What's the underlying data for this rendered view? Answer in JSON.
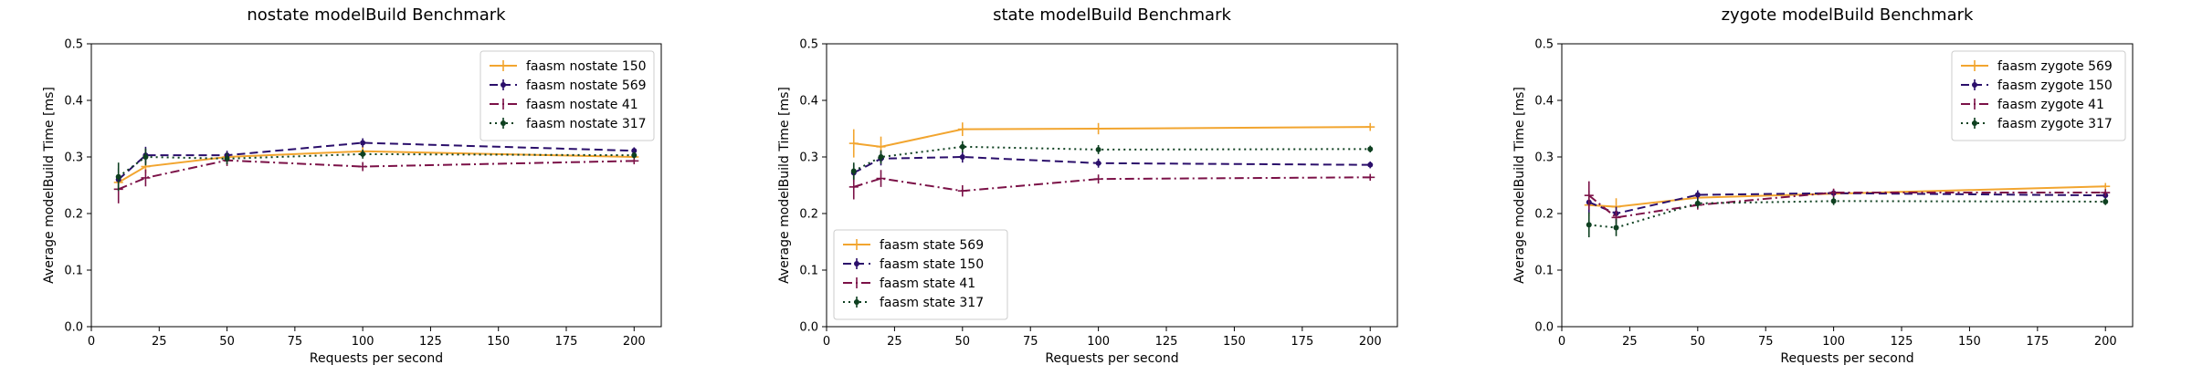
{
  "chart_data": [
    {
      "type": "line",
      "title": "nostate modelBuild Benchmark",
      "xlabel": "Requests per second",
      "ylabel": "Average modelBuild Time [ms]",
      "xlim": [
        0,
        210
      ],
      "ylim": [
        0.0,
        0.5
      ],
      "xticks": [
        "0",
        "25",
        "50",
        "75",
        "100",
        "125",
        "150",
        "175",
        "200"
      ],
      "yticks": [
        "0.0",
        "0.1",
        "0.2",
        "0.3",
        "0.4",
        "0.5"
      ],
      "legend_position": "top-right",
      "x": [
        10,
        20,
        50,
        100,
        200
      ],
      "series": [
        {
          "name": "faasm nostate 150",
          "color": "#f2a52f",
          "style": "solid",
          "marker": "plus",
          "values": [
            0.255,
            0.283,
            0.3,
            0.31,
            0.3
          ],
          "errors": [
            0.015,
            0.012,
            0.008,
            0.01,
            0.007
          ]
        },
        {
          "name": "faasm nostate 569",
          "color": "#2b0f6b",
          "style": "dashed",
          "marker": "dot",
          "values": [
            0.26,
            0.303,
            0.303,
            0.325,
            0.311
          ],
          "errors": [
            0.02,
            0.015,
            0.008,
            0.008,
            0.006
          ]
        },
        {
          "name": "faasm nostate 41",
          "color": "#7b1147",
          "style": "dashdot",
          "marker": "plus",
          "values": [
            0.243,
            0.263,
            0.294,
            0.283,
            0.293
          ],
          "errors": [
            0.025,
            0.015,
            0.01,
            0.008,
            0.006
          ]
        },
        {
          "name": "faasm nostate 317",
          "color": "#0e4020",
          "style": "dotted",
          "marker": "dot",
          "values": [
            0.265,
            0.3,
            0.297,
            0.305,
            0.303
          ],
          "errors": [
            0.025,
            0.015,
            0.01,
            0.008,
            0.006
          ]
        }
      ]
    },
    {
      "type": "line",
      "title": "state modelBuild Benchmark",
      "xlabel": "Requests per second",
      "ylabel": "Average modelBuild Time [ms]",
      "xlim": [
        0,
        210
      ],
      "ylim": [
        0.0,
        0.5
      ],
      "xticks": [
        "0",
        "25",
        "50",
        "75",
        "100",
        "125",
        "150",
        "175",
        "200"
      ],
      "yticks": [
        "0.0",
        "0.1",
        "0.2",
        "0.3",
        "0.4",
        "0.5"
      ],
      "legend_position": "bottom-left",
      "x": [
        10,
        20,
        50,
        100,
        200
      ],
      "series": [
        {
          "name": "faasm state 569",
          "color": "#f2a52f",
          "style": "solid",
          "marker": "plus",
          "values": [
            0.324,
            0.318,
            0.349,
            0.35,
            0.353
          ],
          "errors": [
            0.025,
            0.018,
            0.012,
            0.01,
            0.007
          ]
        },
        {
          "name": "faasm state 150",
          "color": "#2b0f6b",
          "style": "dashed",
          "marker": "dot",
          "values": [
            0.272,
            0.297,
            0.3,
            0.289,
            0.286
          ],
          "errors": [
            0.015,
            0.012,
            0.01,
            0.008,
            0.006
          ]
        },
        {
          "name": "faasm state 41",
          "color": "#7b1147",
          "style": "dashdot",
          "marker": "plus",
          "values": [
            0.247,
            0.262,
            0.24,
            0.261,
            0.264
          ],
          "errors": [
            0.022,
            0.015,
            0.01,
            0.008,
            0.006
          ]
        },
        {
          "name": "faasm state 317",
          "color": "#0e4020",
          "style": "dotted",
          "marker": "dot",
          "values": [
            0.275,
            0.3,
            0.318,
            0.313,
            0.314
          ],
          "errors": [
            0.015,
            0.012,
            0.01,
            0.008,
            0.006
          ]
        }
      ]
    },
    {
      "type": "line",
      "title": "zygote modelBuild Benchmark",
      "xlabel": "Requests per second",
      "ylabel": "Average modelBuild Time [ms]",
      "xlim": [
        0,
        210
      ],
      "ylim": [
        0.0,
        0.5
      ],
      "xticks": [
        "0",
        "25",
        "50",
        "75",
        "100",
        "125",
        "150",
        "175",
        "200"
      ],
      "yticks": [
        "0.0",
        "0.1",
        "0.2",
        "0.3",
        "0.4",
        "0.5"
      ],
      "legend_position": "top-right",
      "x": [
        10,
        20,
        50,
        100,
        200
      ],
      "series": [
        {
          "name": "faasm zygote 569",
          "color": "#f2a52f",
          "style": "solid",
          "marker": "plus",
          "values": [
            0.215,
            0.212,
            0.228,
            0.235,
            0.248
          ],
          "errors": [
            0.02,
            0.015,
            0.008,
            0.007,
            0.006
          ]
        },
        {
          "name": "faasm zygote 150",
          "color": "#2b0f6b",
          "style": "dashed",
          "marker": "dot",
          "values": [
            0.22,
            0.2,
            0.233,
            0.236,
            0.232
          ],
          "errors": [
            0.02,
            0.012,
            0.008,
            0.007,
            0.006
          ]
        },
        {
          "name": "faasm zygote 41",
          "color": "#7b1147",
          "style": "dashdot",
          "marker": "plus",
          "values": [
            0.232,
            0.193,
            0.215,
            0.237,
            0.237
          ],
          "errors": [
            0.025,
            0.012,
            0.008,
            0.007,
            0.006
          ]
        },
        {
          "name": "faasm zygote 317",
          "color": "#0e4020",
          "style": "dotted",
          "marker": "dot",
          "values": [
            0.18,
            0.175,
            0.218,
            0.222,
            0.221
          ],
          "errors": [
            0.022,
            0.015,
            0.008,
            0.007,
            0.006
          ]
        }
      ]
    }
  ]
}
